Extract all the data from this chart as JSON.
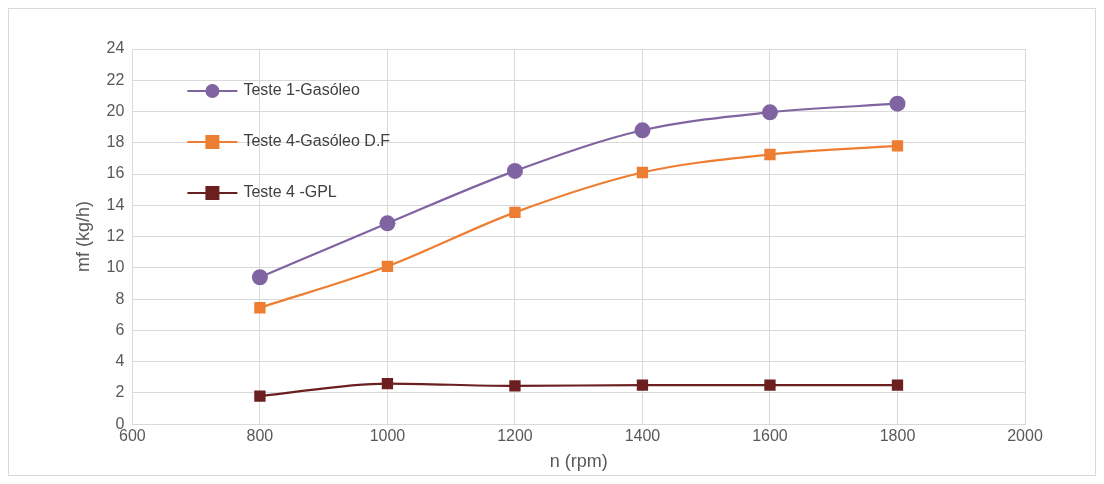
{
  "chart_data": {
    "type": "line",
    "xlabel": "n (rpm)",
    "ylabel": "mf (kg/h)",
    "x": [
      800,
      1000,
      1200,
      1400,
      1600,
      1800
    ],
    "series": [
      {
        "name": "Teste 1-Gasóleo",
        "color": "#8064a2",
        "marker": "circle",
        "values": [
          9.4,
          12.85,
          16.2,
          18.8,
          19.95,
          20.5
        ]
      },
      {
        "name": "Teste 4-Gasóleo D.F",
        "color": "#ed7d31",
        "marker": "square",
        "values": [
          7.45,
          10.1,
          13.55,
          16.1,
          17.25,
          17.8
        ]
      },
      {
        "name": "Teste 4 -GPL",
        "color": "#6b1f1f",
        "marker": "square",
        "values": [
          1.8,
          2.6,
          2.45,
          2.5,
          2.5,
          2.5
        ]
      }
    ],
    "xlim": [
      600,
      2000
    ],
    "xticks": [
      600,
      800,
      1000,
      1200,
      1400,
      1600,
      1800,
      2000
    ],
    "ylim": [
      0,
      24
    ],
    "yticks": [
      0,
      2,
      4,
      6,
      8,
      10,
      12,
      14,
      16,
      18,
      20,
      22,
      24
    ],
    "grid": true,
    "legend": "top left",
    "line_style": "solid"
  }
}
